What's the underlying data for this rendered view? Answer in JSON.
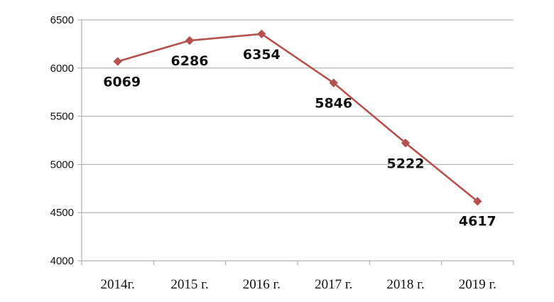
{
  "chart_data": {
    "type": "line",
    "categories": [
      "2014г.",
      "2015 г.",
      "2016 г.",
      "2017 г.",
      "2018 г.",
      "2019 г."
    ],
    "series": [
      {
        "values": [
          6069,
          6286,
          6354,
          5846,
          5222,
          4617
        ]
      }
    ],
    "data_labels": [
      "6069",
      "6286",
      "6354",
      "5846",
      "5222",
      "4617"
    ],
    "y_ticks": [
      "4000",
      "4500",
      "5000",
      "5500",
      "6000",
      "6500"
    ],
    "ylim": [
      4000,
      6500
    ],
    "grid": "horizontal",
    "line_color": "#b5524f",
    "marker": "diamond",
    "axis_color": "#a6a6a6",
    "grid_color": "#a6a6a6"
  }
}
